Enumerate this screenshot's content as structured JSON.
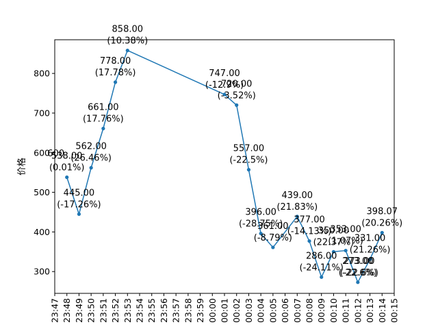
{
  "chart_data": {
    "type": "line",
    "title": "",
    "xlabel": "",
    "ylabel": "价格",
    "x_ticks": [
      "23:47",
      "23:48",
      "23:49",
      "23:50",
      "23:51",
      "23:52",
      "23:53",
      "23:54",
      "23:55",
      "23:56",
      "23:57",
      "23:58",
      "23:59",
      "00:00",
      "00:01",
      "00:02",
      "00:03",
      "00:04",
      "00:05",
      "00:06",
      "00:07",
      "00:08",
      "00:09",
      "00:10",
      "00:11",
      "00:12",
      "00:13",
      "00:14",
      "00:15"
    ],
    "y_ticks": [
      300,
      400,
      500,
      600,
      700,
      800
    ],
    "ylim": [
      245,
      885
    ],
    "grid": false,
    "legend": "none",
    "colors": {
      "line": "#1f77b4",
      "axes": "#000000"
    },
    "series": [
      {
        "points": [
          {
            "x": "23:48",
            "y": 538.0,
            "change": "0.01%"
          },
          {
            "x": "23:49",
            "y": 445.0,
            "change": "-17.26%"
          },
          {
            "x": "23:50",
            "y": 562.0,
            "change": "26.46%"
          },
          {
            "x": "23:51",
            "y": 661.0,
            "change": "17.76%"
          },
          {
            "x": "23:52",
            "y": 778.0,
            "change": "17.78%"
          },
          {
            "x": "23:53",
            "y": 858.0,
            "change": "10.38%"
          },
          {
            "x": "00:01",
            "y": 747.0,
            "change": "-12.9%"
          },
          {
            "x": "00:02",
            "y": 720.0,
            "change": "-3.52%"
          },
          {
            "x": "00:03",
            "y": 557.0,
            "change": "-22.5%"
          },
          {
            "x": "00:04",
            "y": 396.0,
            "change": "-28.75%"
          },
          {
            "x": "00:05",
            "y": 361.0,
            "change": "-8.79%"
          },
          {
            "x": "00:07",
            "y": 439.0,
            "change": "21.83%"
          },
          {
            "x": "00:08",
            "y": 377.0,
            "change": "-14.13%"
          },
          {
            "x": "00:09",
            "y": 286.0,
            "change": "-24.11%"
          },
          {
            "x": "00:10",
            "y": 350.0,
            "change": "22.37%"
          },
          {
            "x": "00:11",
            "y": 353.0,
            "change": "1.07%"
          },
          {
            "x": "00:12",
            "y": 273.0,
            "change": "-22.6%"
          },
          {
            "x": "00:13",
            "y": 331.0,
            "change": "21.26%"
          },
          {
            "x": "00:14",
            "y": 398.07,
            "change": "20.26%"
          }
        ]
      }
    ],
    "extra_labels": [
      {
        "x": "23:48",
        "y": 600,
        "text": "600"
      },
      {
        "x": "00:12",
        "y": 273.0,
        "text": "273.00",
        "sub": "(-22.6%)"
      }
    ]
  }
}
